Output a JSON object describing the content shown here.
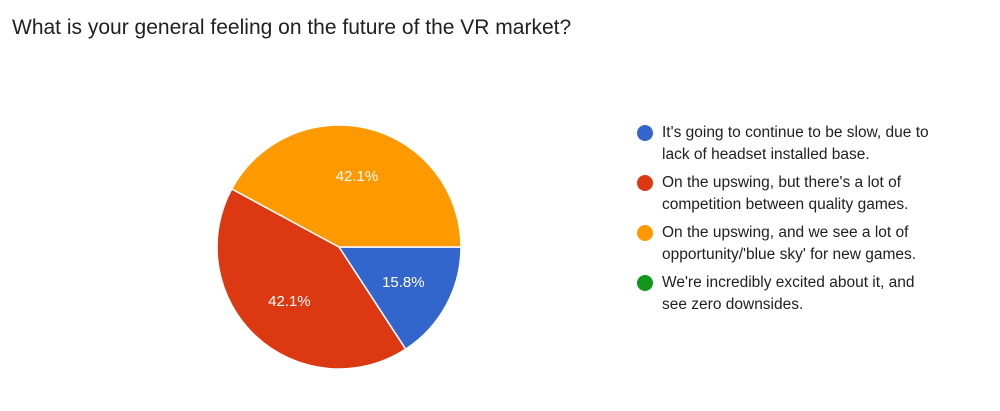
{
  "title": "What is your general feeling on the future of the VR market?",
  "chart_data": {
    "type": "pie",
    "title": "What is your general feeling on the future of the VR market?",
    "slices": [
      {
        "label": "It's going to continue to be slow, due to\nlack of headset installed base.",
        "value": 15.8,
        "display": "15.8%",
        "color": "#3366cc"
      },
      {
        "label": "On the upswing, but there's a lot of\ncompetition between quality games.",
        "value": 42.1,
        "display": "42.1%",
        "color": "#dc3912"
      },
      {
        "label": "On the upswing, and we see a lot of\nopportunity/'blue sky' for new games.",
        "value": 42.1,
        "display": "42.1%",
        "color": "#ff9900"
      },
      {
        "label": "We're incredibly excited about it, and\nsee zero downsides.",
        "value": 0,
        "display": "0%",
        "color": "#109618"
      }
    ],
    "legend_position": "right"
  }
}
